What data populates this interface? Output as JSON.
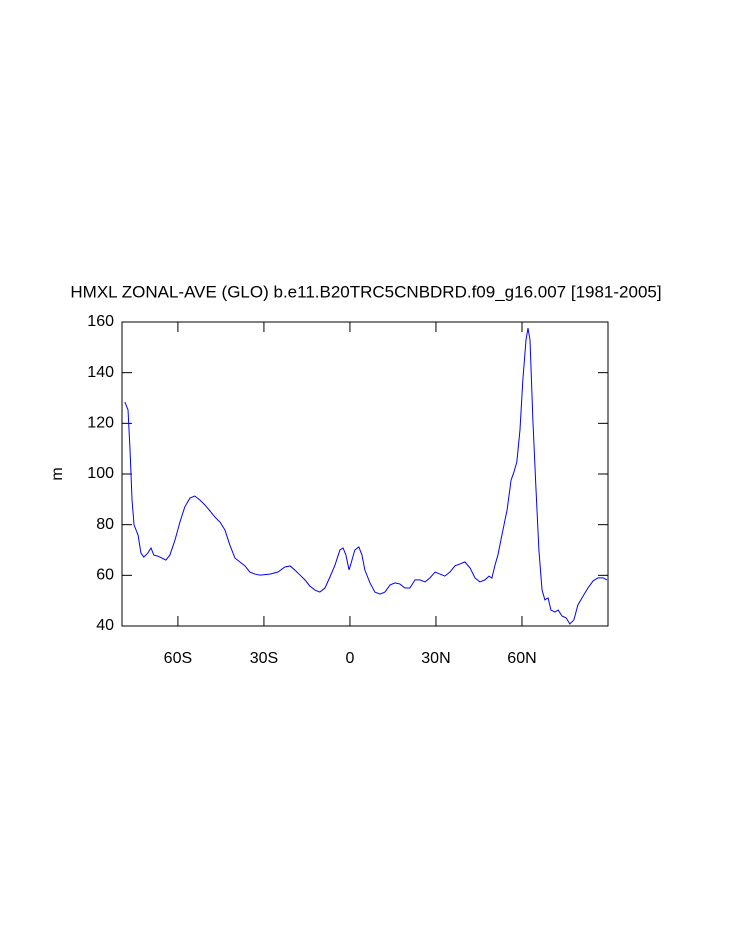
{
  "chart_data": {
    "type": "line",
    "title": "HMXL ZONAL-AVE (GLO) b.e11.B20TRC5CNBDRD.f09_g16.007 [1981-2005]",
    "y_label": "m",
    "xlim": [
      -79.5,
      90
    ],
    "ylim": [
      40,
      160
    ],
    "xticks": [
      {
        "value": -60,
        "label": "60S"
      },
      {
        "value": -30,
        "label": "30S"
      },
      0,
      {
        "value": 30,
        "label": "30N"
      },
      {
        "value": 60,
        "label": "60N"
      }
    ],
    "yticks": [
      40,
      60,
      80,
      100,
      120,
      140,
      160
    ],
    "series": [
      {
        "color": "#0000ff",
        "x": [
          -78.5,
          -77.4,
          -76.7,
          -76,
          -75.3,
          -73.9,
          -72.9,
          -71.9,
          -70.5,
          -69.4,
          -68.4,
          -67,
          -65.6,
          -64.2,
          -62.8,
          -61,
          -59.3,
          -57.6,
          -55.8,
          -54.1,
          -52.3,
          -50.6,
          -48.8,
          -47.1,
          -45.3,
          -43.6,
          -41.9,
          -40.1,
          -38.4,
          -36.6,
          -34.9,
          -33.1,
          -31.4,
          -27.9,
          -25.1,
          -22.7,
          -20.9,
          -19.2,
          -17.4,
          -15.7,
          -14,
          -12.2,
          -10.5,
          -8.7,
          -7,
          -5.2,
          -3.5,
          -2.4,
          -1.4,
          -0.3,
          0.7,
          1.7,
          3.1,
          4.2,
          5.2,
          7,
          8.7,
          10.5,
          12.2,
          14,
          15.7,
          17.4,
          19.2,
          20.9,
          22.7,
          24.4,
          26.2,
          27.9,
          29.7,
          31.4,
          33.1,
          34.9,
          36.6,
          38.4,
          40.1,
          41.9,
          43.6,
          45.3,
          47.1,
          48.5,
          49.5,
          50.6,
          51.6,
          53,
          54.8,
          56.2,
          57.2,
          58.2,
          59.3,
          60.3,
          61.4,
          62.1,
          62.8,
          63.8,
          64.9,
          65.9,
          67,
          68,
          69.1,
          70.1,
          71.5,
          72.6,
          74,
          75.4,
          76.7,
          78.1,
          79.5,
          81.3,
          83,
          84.8,
          86.5,
          88.3,
          89.6
        ],
        "values": [
          128.4,
          125.3,
          109.5,
          89.7,
          79.9,
          75.9,
          68.8,
          67.2,
          68.8,
          70.8,
          68,
          67.6,
          66.8,
          66,
          68,
          74,
          81,
          87,
          90.5,
          91.3,
          89.7,
          87.8,
          85.4,
          83,
          81,
          77.9,
          72,
          66.8,
          65.3,
          63.7,
          61.3,
          60.5,
          60.1,
          60.5,
          61.3,
          63.3,
          63.7,
          62.1,
          60.1,
          58.2,
          55.8,
          54.2,
          53.4,
          55,
          59.3,
          64.1,
          70,
          70.8,
          68,
          62.1,
          66,
          70,
          71.2,
          68,
          62.1,
          57,
          53.4,
          52.6,
          53.4,
          56.2,
          57,
          56.6,
          55,
          55,
          58.2,
          58.2,
          57.4,
          59,
          61.3,
          60.5,
          59.7,
          61.3,
          63.7,
          64.5,
          65.3,
          62.9,
          59,
          57.4,
          58.2,
          59.7,
          58.9,
          64.1,
          68,
          75.9,
          85.8,
          97.6,
          100.8,
          104.7,
          117.4,
          137.1,
          152.9,
          157.6,
          152.9,
          121.3,
          93.7,
          70,
          54.2,
          50.3,
          51.1,
          46.3,
          45.5,
          46.3,
          43.9,
          43.2,
          40.8,
          42.4,
          48.3,
          51.8,
          55,
          57.8,
          59,
          59,
          58.2
        ]
      }
    ]
  }
}
